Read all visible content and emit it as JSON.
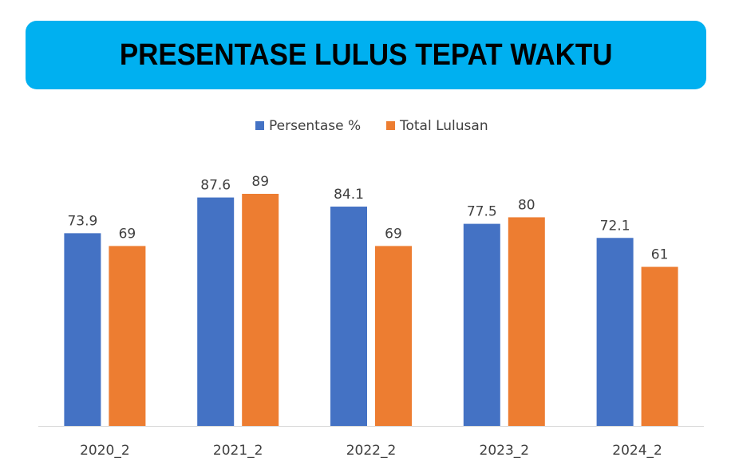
{
  "title": "PRESENTASE LULUS TEPAT WAKTU",
  "chart_data": {
    "type": "bar",
    "categories": [
      "2020_2",
      "2021_2",
      "2022_2",
      "2023_2",
      "2024_2"
    ],
    "series": [
      {
        "name": "Persentase %",
        "values": [
          73.9,
          87.6,
          84.1,
          77.5,
          72.1
        ],
        "labels": [
          "73.9",
          "87.6",
          "84.1",
          "77.5",
          "72.1"
        ],
        "color": "#4472c4"
      },
      {
        "name": "Total Lulusan",
        "values": [
          69,
          89,
          69,
          80,
          61
        ],
        "labels": [
          "69",
          "89",
          "69",
          "80",
          "61"
        ],
        "color": "#ed7d31"
      }
    ],
    "legend": "top",
    "grid": false,
    "ylim": [
      0,
      100
    ]
  }
}
